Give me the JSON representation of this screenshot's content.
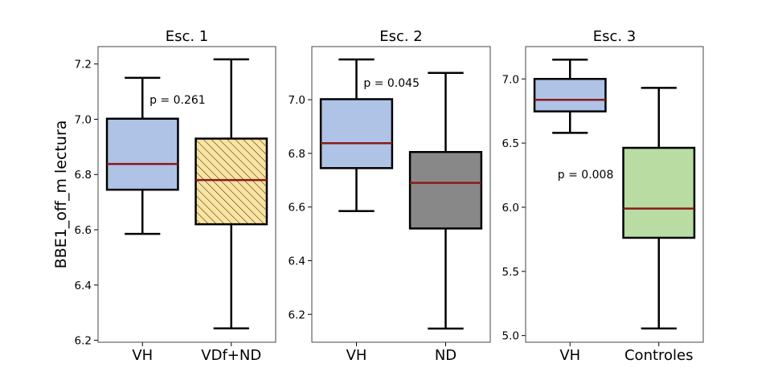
{
  "chart_data": {
    "type": "box",
    "ylabel": "BBE1_off_m lectura",
    "colors": {
      "median": "#8b1a1a",
      "VH": "#aec3e6",
      "VDf+ND": "#fbe3a0",
      "ND": "#888888",
      "Controles": "#b9dca2"
    },
    "panels": [
      {
        "title": "Esc. 1",
        "ylim": [
          6.193,
          7.263
        ],
        "yticks": [
          "6.2",
          "6.4",
          "6.6",
          "6.8",
          "7.0",
          "7.2"
        ],
        "annotation": "p = 0.261",
        "categories": [
          "VH",
          "VDf+ND"
        ],
        "boxes": [
          {
            "label": "VH",
            "whislo": 6.585,
            "q1": 6.745,
            "median": 6.838,
            "q3": 7.002,
            "whishi": 7.15,
            "fill": "#aec3e6",
            "hatch": false
          },
          {
            "label": "VDf+ND",
            "whislo": 6.243,
            "q1": 6.62,
            "median": 6.78,
            "q3": 6.93,
            "whishi": 7.217,
            "fill": "#fbe3a0",
            "hatch": true
          }
        ]
      },
      {
        "title": "Esc. 2",
        "ylim": [
          6.096,
          7.198
        ],
        "yticks": [
          "6.2",
          "6.4",
          "6.6",
          "6.8",
          "7.0"
        ],
        "annotation": "p = 0.045",
        "categories": [
          "VH",
          "ND"
        ],
        "boxes": [
          {
            "label": "VH",
            "whislo": 6.585,
            "q1": 6.745,
            "median": 6.838,
            "q3": 7.002,
            "whishi": 7.15,
            "fill": "#aec3e6",
            "hatch": false
          },
          {
            "label": "ND",
            "whislo": 6.147,
            "q1": 6.52,
            "median": 6.69,
            "q3": 6.805,
            "whishi": 7.1,
            "fill": "#888888",
            "hatch": false
          }
        ]
      },
      {
        "title": "Esc. 3",
        "ylim": [
          4.948,
          7.252
        ],
        "yticks": [
          "5.0",
          "5.5",
          "6.0",
          "6.5",
          "7.0"
        ],
        "annotation": "p = 0.008",
        "categories": [
          "VH",
          "Controles"
        ],
        "boxes": [
          {
            "label": "VH",
            "whislo": 6.58,
            "q1": 6.747,
            "median": 6.837,
            "q3": 7.0,
            "whishi": 7.15,
            "fill": "#aec3e6",
            "hatch": false
          },
          {
            "label": "Controles",
            "whislo": 5.055,
            "q1": 5.762,
            "median": 5.99,
            "q3": 6.463,
            "whishi": 6.93,
            "fill": "#b9dca2",
            "hatch": false
          }
        ]
      }
    ]
  }
}
